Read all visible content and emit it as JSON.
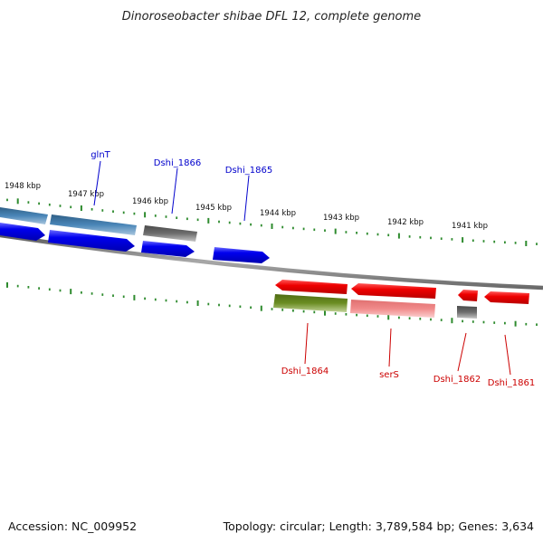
{
  "title": "Dinoroseobacter shibae DFL 12, complete genome",
  "footer": {
    "accession": "Accession: NC_009952",
    "topology": "Topology: circular; Length: 3,789,584 bp; Genes: 3,634"
  },
  "colors": {
    "backbone": "#8c8c8c",
    "tick": "#2e8b2e",
    "blue_gene": "#0000ee",
    "steel_gene": "#4a86b8",
    "gray_gene": "#6e6e6e",
    "red_gene": "#ee0000",
    "olive_gene": "#6b8e23",
    "pink_gene": "#f08a8a",
    "label_blue": "#0000cc",
    "label_red": "#cc0000"
  },
  "kbp_labels": [
    "1948 kbp",
    "1947 kbp",
    "1946 kbp",
    "1945 kbp",
    "1944 kbp",
    "1943 kbp",
    "1942 kbp",
    "1941 kbp"
  ],
  "upper_gene_labels": [
    "glnT",
    "Dshi_1866",
    "Dshi_1865"
  ],
  "lower_gene_labels": [
    "Dshi_1864",
    "serS",
    "Dshi_1862",
    "Dshi_1861"
  ]
}
